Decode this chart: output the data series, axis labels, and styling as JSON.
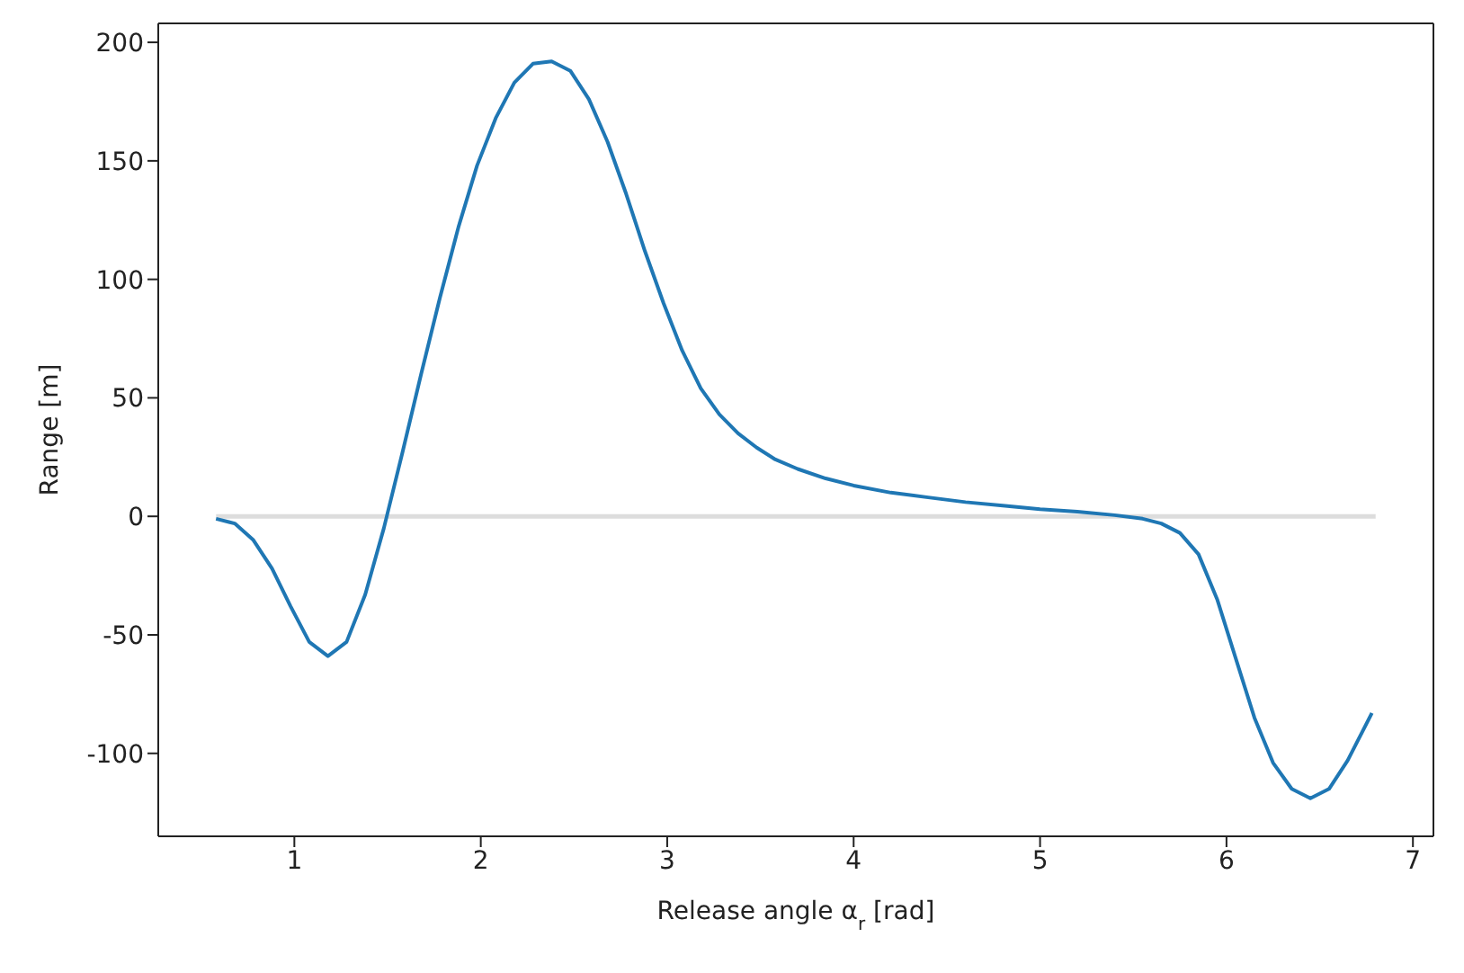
{
  "chart_data": {
    "type": "line",
    "xlabel": "Release angle α$_{r}$ [rad]",
    "ylabel": "Range [m]",
    "xlim": [
      0.27,
      7.11
    ],
    "xticks": [
      1,
      2,
      3,
      4,
      5,
      6,
      7
    ],
    "ylim": [
      -135,
      208
    ],
    "yticks": [
      -100,
      -50,
      0,
      50,
      100,
      150,
      200
    ],
    "marker": "none",
    "line_style": "solid",
    "series": [
      {
        "color": "#dddddd",
        "x": [
          0.58,
          6.8
        ],
        "values": [
          0,
          0
        ]
      },
      {
        "color": "#1f77b4",
        "x": [
          0.58,
          0.68,
          0.78,
          0.88,
          0.98,
          1.08,
          1.18,
          1.28,
          1.38,
          1.48,
          1.58,
          1.68,
          1.78,
          1.88,
          1.98,
          2.08,
          2.18,
          2.28,
          2.38,
          2.48,
          2.58,
          2.68,
          2.78,
          2.88,
          2.98,
          3.08,
          3.18,
          3.28,
          3.38,
          3.48,
          3.58,
          3.7,
          3.85,
          4.0,
          4.2,
          4.4,
          4.6,
          4.8,
          5.0,
          5.2,
          5.4,
          5.55,
          5.65,
          5.75,
          5.85,
          5.95,
          6.05,
          6.15,
          6.25,
          6.35,
          6.45,
          6.55,
          6.65,
          6.78
        ],
        "values": [
          -1,
          -3,
          -10,
          -22,
          -38,
          -53,
          -59,
          -53,
          -33,
          -5,
          27,
          60,
          92,
          122,
          148,
          168,
          183,
          191,
          192,
          188,
          176,
          158,
          136,
          112,
          90,
          70,
          54,
          43,
          35,
          29,
          24,
          20,
          16,
          13,
          10,
          8,
          6,
          4.5,
          3,
          2,
          0.5,
          -1,
          -3,
          -7,
          -16,
          -35,
          -60,
          -85,
          -104,
          -115,
          -119,
          -115,
          -103,
          -83
        ]
      }
    ]
  }
}
